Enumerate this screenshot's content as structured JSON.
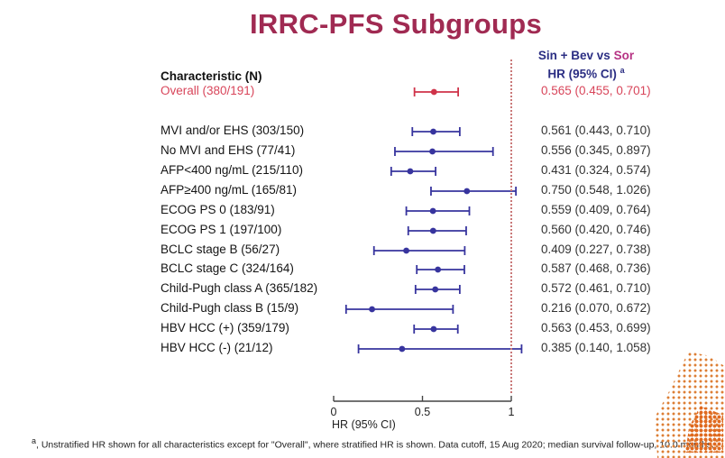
{
  "slide": {
    "title": "IRRC-PFS Subgroups",
    "footnote_marker": "a",
    "footnote": ", Unstratified HR shown for all characteristics except for \"Overall\", where stratified HR is shown. Data cutoff, 15 Aug 2020; median survival follow-up, 10.0 months."
  },
  "table": {
    "characteristic_header": "Characteristic (N)",
    "comparison_arm_a": "Sin + Bev",
    "comparison_vs": " vs ",
    "comparison_arm_b": "Sor",
    "hr_header": "HR (95% CI) ",
    "hr_header_sup": "a"
  },
  "colors": {
    "title": "#a02a52",
    "header_navy": "#2b2e83",
    "header_magenta": "#b63384",
    "highlight_red": "#d8455a",
    "marker_red": "#cf3349",
    "marker_blue": "#37349e",
    "reference_line_red": "#c97878",
    "axis": "#444444",
    "decoration_orange": "#dd7e35"
  },
  "chart_data": {
    "type": "forest",
    "xlabel": "HR (95% CI)",
    "xlim": [
      0,
      1.1
    ],
    "reference_line": 1,
    "grid": false,
    "x_ticks": [
      {
        "value": 0,
        "label": "0"
      },
      {
        "value": 0.5,
        "label": "0.5"
      },
      {
        "value": 1,
        "label": "1"
      }
    ],
    "rows": [
      {
        "label": "Overall (380/191)",
        "hr": 0.565,
        "ci_low": 0.455,
        "ci_high": 0.701,
        "hr_text": "0.565 (0.455, 0.701)",
        "highlight": true
      },
      {
        "label": "MVI and/or EHS (303/150)",
        "hr": 0.561,
        "ci_low": 0.443,
        "ci_high": 0.71,
        "hr_text": "0.561 (0.443, 0.710)",
        "highlight": false
      },
      {
        "label": "No MVI and EHS (77/41)",
        "hr": 0.556,
        "ci_low": 0.345,
        "ci_high": 0.897,
        "hr_text": "0.556 (0.345, 0.897)",
        "highlight": false
      },
      {
        "label": "AFP<400 ng/mL (215/110)",
        "hr": 0.431,
        "ci_low": 0.324,
        "ci_high": 0.574,
        "hr_text": "0.431 (0.324, 0.574)",
        "highlight": false
      },
      {
        "label": "AFP≥400 ng/mL (165/81)",
        "hr": 0.75,
        "ci_low": 0.548,
        "ci_high": 1.026,
        "hr_text": "0.750 (0.548, 1.026)",
        "highlight": false
      },
      {
        "label": "ECOG PS 0 (183/91)",
        "hr": 0.559,
        "ci_low": 0.409,
        "ci_high": 0.764,
        "hr_text": "0.559 (0.409, 0.764)",
        "highlight": false
      },
      {
        "label": "ECOG PS 1 (197/100)",
        "hr": 0.56,
        "ci_low": 0.42,
        "ci_high": 0.746,
        "hr_text": "0.560 (0.420, 0.746)",
        "highlight": false
      },
      {
        "label": "BCLC stage B (56/27)",
        "hr": 0.409,
        "ci_low": 0.227,
        "ci_high": 0.738,
        "hr_text": "0.409 (0.227, 0.738)",
        "highlight": false
      },
      {
        "label": "BCLC stage C (324/164)",
        "hr": 0.587,
        "ci_low": 0.468,
        "ci_high": 0.736,
        "hr_text": "0.587 (0.468, 0.736)",
        "highlight": false
      },
      {
        "label": "Child-Pugh class A (365/182)",
        "hr": 0.572,
        "ci_low": 0.461,
        "ci_high": 0.71,
        "hr_text": "0.572 (0.461, 0.710)",
        "highlight": false
      },
      {
        "label": "Child-Pugh class B (15/9)",
        "hr": 0.216,
        "ci_low": 0.07,
        "ci_high": 0.672,
        "hr_text": "0.216 (0.070, 0.672)",
        "highlight": false
      },
      {
        "label": "HBV HCC (+) (359/179)",
        "hr": 0.563,
        "ci_low": 0.453,
        "ci_high": 0.699,
        "hr_text": "0.563 (0.453, 0.699)",
        "highlight": false
      },
      {
        "label": "HBV HCC (-) (21/12)",
        "hr": 0.385,
        "ci_low": 0.14,
        "ci_high": 1.058,
        "hr_text": "0.385 (0.140, 1.058)",
        "highlight": false
      }
    ]
  }
}
